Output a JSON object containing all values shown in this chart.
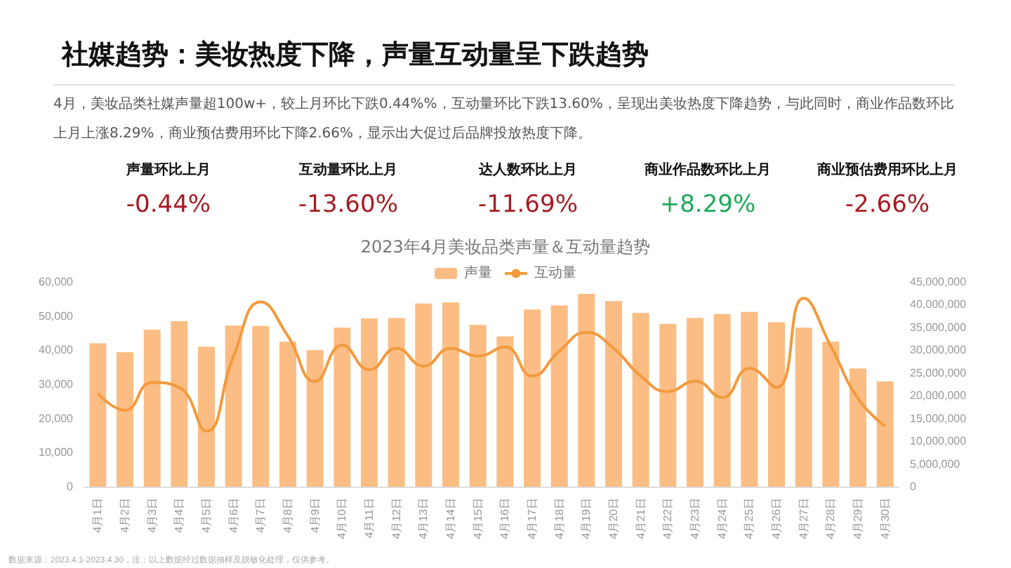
{
  "chart_data": [
    {
      "type": "other",
      "title": "社媒趋势：美妆热度下降，声量互动量呈下跌趋势",
      "subtitle": "4月，美妆品类社媒声量超100w+，较上月环比下跌0.44%%，互动量环比下跌13.60%，呈现出美妆热度下降趋势，与此同时，商业作品数环比上月上涨8.29%，商业预估费用环比下降2.66%，显示出大促过后品牌投放热度下降。",
      "annotations": [
        "声量环比上月",
        "-0.44%",
        "互动量环比上月",
        "-13.60%",
        "达人数环比上月",
        "-11.69%",
        "商业作品数环比上月",
        "+8.29%",
        "商业预估费用环比上月",
        "-2.66%"
      ],
      "colors": [
        "#a51c24",
        "#a51c24",
        "#a51c24",
        "#1ea75a",
        "#a51c24"
      ]
    },
    {
      "type": "bar",
      "title": "2023年4月美妆品类声量＆互动量趋势",
      "categories": [
        "4月1日",
        "4月2日",
        "4月3日",
        "4月4日",
        "4月5日",
        "4月6日",
        "4月7日",
        "4月8日",
        "4月9日",
        "4月10日",
        "4月11日",
        "4月12日",
        "4月13日",
        "4月14日",
        "4月15日",
        "4月16日",
        "4月17日",
        "4月18日",
        "4月19日",
        "4月20日",
        "4月21日",
        "4月22日",
        "4月23日",
        "4月24日",
        "4月25日",
        "4月26日",
        "4月27日",
        "4月28日",
        "4月29日",
        "4月30日"
      ],
      "series": [
        {
          "name": "声量",
          "type": "bar",
          "color": "#fbbd83",
          "values": [
            42000,
            39400,
            46000,
            48500,
            41000,
            47200,
            47100,
            42500,
            40000,
            46600,
            49300,
            49400,
            53700,
            54000,
            47400,
            44000,
            51900,
            53100,
            56500,
            54400,
            50900,
            47700,
            49400,
            50600,
            51200,
            48200,
            46600,
            42500,
            34600,
            30800
          ]
        },
        {
          "name": "互动量",
          "type": "line",
          "axis": "y2",
          "color": "#f39a3d",
          "values": [
            20500000,
            16800000,
            22900000,
            21800000,
            12200000,
            28700000,
            40600000,
            33100000,
            23100000,
            31100000,
            25700000,
            30400000,
            26500000,
            30400000,
            28700000,
            30700000,
            24300000,
            29800000,
            33900000,
            30400000,
            24300000,
            20900000,
            23200000,
            19600000,
            26000000,
            21800000,
            41400000,
            30900000,
            19400000,
            13300000
          ]
        }
      ],
      "ylim": [
        0,
        60000
      ],
      "yticks": [
        {
          "value": 0,
          "label": "0"
        },
        {
          "value": 10000,
          "label": "10,000"
        },
        {
          "value": 20000,
          "label": "20,000"
        },
        {
          "value": 30000,
          "label": "30,000"
        },
        {
          "value": 40000,
          "label": "40,000"
        },
        {
          "value": 50000,
          "label": "50,000"
        },
        {
          "value": 60000,
          "label": "60,000"
        }
      ],
      "y2lim": [
        0,
        45000000
      ],
      "y2ticks": [
        {
          "value": 0,
          "label": "0"
        },
        {
          "value": 5000000,
          "label": "5,000,000"
        },
        {
          "value": 10000000,
          "label": "10,000,000"
        },
        {
          "value": 15000000,
          "label": "15,000,000"
        },
        {
          "value": 20000000,
          "label": "20,000,000"
        },
        {
          "value": 25000000,
          "label": "25,000,000"
        },
        {
          "value": 30000000,
          "label": "30,000,000"
        },
        {
          "value": 35000000,
          "label": "35,000,000"
        },
        {
          "value": 40000000,
          "label": "40,000,000"
        },
        {
          "value": 45000000,
          "label": "45,000,000"
        }
      ],
      "legend": "top",
      "grid": false,
      "marker": "none",
      "annotations": [
        "数据来源：2023.4.1-2023.4.30，注：以上数据经过数据抽样及脱敏化处理，仅供参考。"
      ]
    }
  ]
}
